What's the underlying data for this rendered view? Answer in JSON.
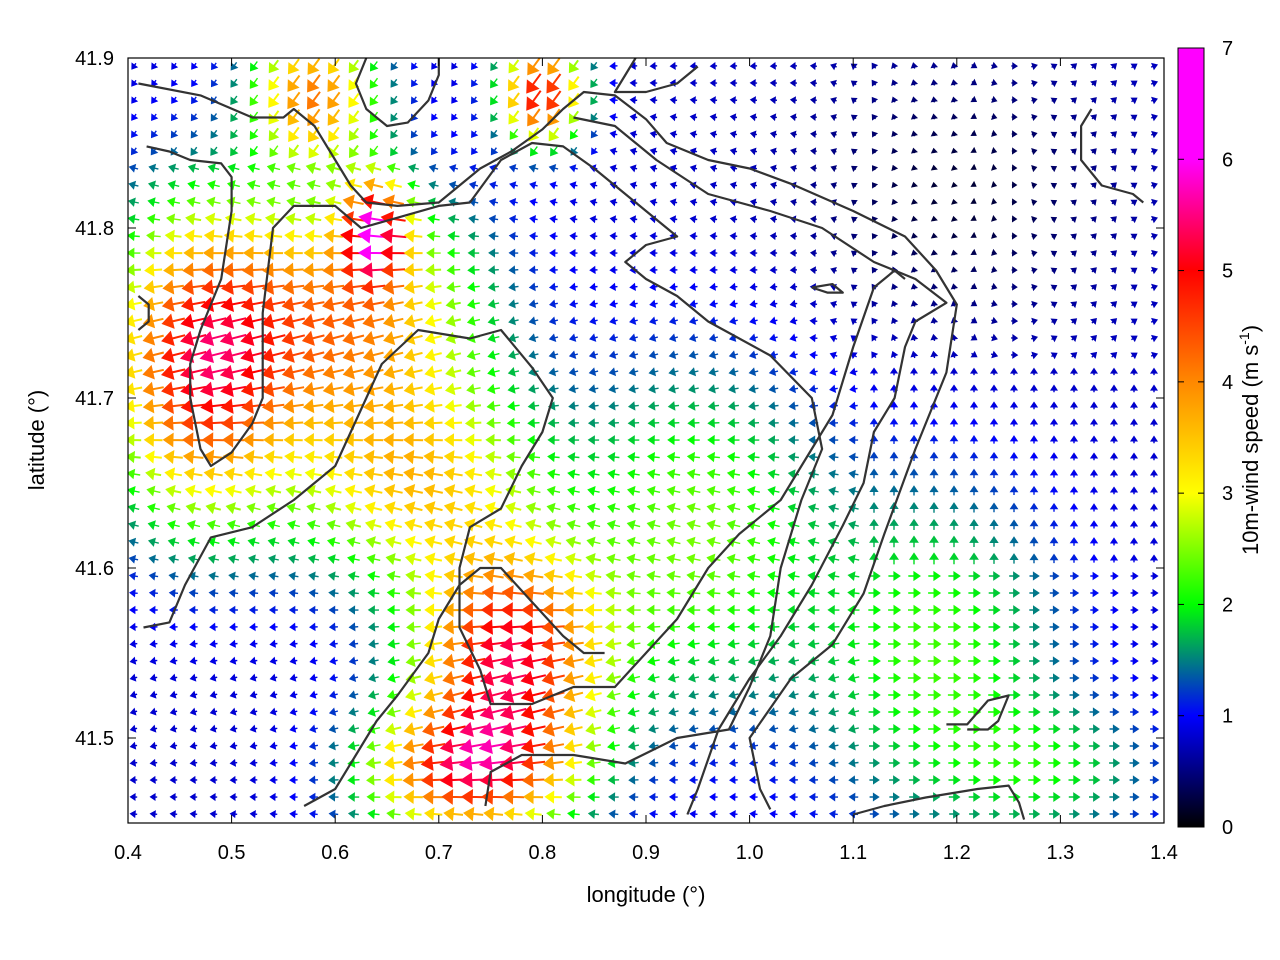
{
  "chart_data": {
    "type": "vector-field",
    "title": "",
    "xlabel": "longitude (°)",
    "ylabel": "latitude (°)",
    "xlim": [
      0.4,
      1.4
    ],
    "ylim": [
      41.45,
      41.9
    ],
    "xticks": [
      "0.4",
      "0.5",
      "0.6",
      "0.7",
      "0.8",
      "0.9",
      "1.0",
      "1.1",
      "1.2",
      "1.3",
      "1.4"
    ],
    "yticks": [
      "41.5",
      "41.6",
      "41.7",
      "41.8",
      "41.9"
    ],
    "colorbar": {
      "label": "10m-wind speed (m s",
      "label_sup": "-1",
      "label_end": ")",
      "range": [
        0,
        7
      ],
      "ticks": [
        "0",
        "1",
        "2",
        "3",
        "4",
        "5",
        "6",
        "7"
      ],
      "palette": [
        "#000000",
        "#0000ff",
        "#00ff00",
        "#ffff00",
        "#ff8800",
        "#ff0000",
        "#ff00ff"
      ]
    },
    "contour_color": "#333333",
    "contours": [
      [
        [
          0.41,
          41.885
        ],
        [
          0.47,
          41.878
        ],
        [
          0.52,
          41.865
        ],
        [
          0.55,
          41.865
        ],
        [
          0.56,
          41.87
        ],
        [
          0.58,
          41.86
        ],
        [
          0.6,
          41.84
        ],
        [
          0.615,
          41.825
        ],
        [
          0.63,
          41.815
        ],
        [
          0.66,
          41.813
        ],
        [
          0.7,
          41.815
        ],
        [
          0.72,
          41.825
        ],
        [
          0.74,
          41.835
        ],
        [
          0.77,
          41.845
        ],
        [
          0.8,
          41.858
        ],
        [
          0.82,
          41.87
        ],
        [
          0.84,
          41.88
        ],
        [
          0.87,
          41.878
        ],
        [
          0.9,
          41.864
        ],
        [
          0.92,
          41.85
        ],
        [
          0.96,
          41.84
        ],
        [
          1.0,
          41.835
        ],
        [
          1.04,
          41.826
        ],
        [
          1.1,
          41.81
        ],
        [
          1.15,
          41.795
        ],
        [
          1.18,
          41.775
        ],
        [
          1.2,
          41.755
        ],
        [
          1.19,
          41.715
        ],
        [
          1.16,
          41.67
        ],
        [
          1.13,
          41.62
        ],
        [
          1.11,
          41.585
        ],
        [
          1.08,
          41.555
        ],
        [
          1.04,
          41.535
        ],
        [
          1.0,
          41.5
        ],
        [
          1.01,
          41.47
        ],
        [
          1.02,
          41.458
        ]
      ],
      [
        [
          0.418,
          41.848
        ],
        [
          0.44,
          41.845
        ],
        [
          0.46,
          41.84
        ],
        [
          0.49,
          41.838
        ],
        [
          0.5,
          41.83
        ],
        [
          0.5,
          41.81
        ],
        [
          0.49,
          41.77
        ],
        [
          0.47,
          41.74
        ],
        [
          0.46,
          41.72
        ],
        [
          0.46,
          41.7
        ],
        [
          0.47,
          41.67
        ],
        [
          0.48,
          41.66
        ],
        [
          0.5,
          41.668
        ],
        [
          0.52,
          41.685
        ],
        [
          0.53,
          41.7
        ],
        [
          0.53,
          41.75
        ],
        [
          0.54,
          41.8
        ],
        [
          0.56,
          41.813
        ],
        [
          0.6,
          41.813
        ],
        [
          0.625,
          41.8
        ],
        [
          0.7,
          41.813
        ],
        [
          0.73,
          41.815
        ],
        [
          0.76,
          41.84
        ],
        [
          0.79,
          41.85
        ],
        [
          0.82,
          41.848
        ],
        [
          0.85,
          41.835
        ],
        [
          0.9,
          41.81
        ],
        [
          0.93,
          41.795
        ],
        [
          0.9,
          41.79
        ],
        [
          0.88,
          41.78
        ],
        [
          0.9,
          41.77
        ],
        [
          0.93,
          41.76
        ],
        [
          0.96,
          41.745
        ],
        [
          1.02,
          41.725
        ],
        [
          1.06,
          41.7
        ],
        [
          1.07,
          41.67
        ],
        [
          1.05,
          41.64
        ],
        [
          1.03,
          41.6
        ],
        [
          1.02,
          41.56
        ],
        [
          1.0,
          41.53
        ],
        [
          0.98,
          41.505
        ],
        [
          0.93,
          41.5
        ],
        [
          0.88,
          41.485
        ],
        [
          0.83,
          41.49
        ],
        [
          0.78,
          41.49
        ],
        [
          0.75,
          41.48
        ],
        [
          0.745,
          41.46
        ]
      ],
      [
        [
          0.415,
          41.565
        ],
        [
          0.44,
          41.568
        ],
        [
          0.455,
          41.59
        ],
        [
          0.48,
          41.618
        ],
        [
          0.52,
          41.624
        ],
        [
          0.56,
          41.64
        ],
        [
          0.6,
          41.66
        ],
        [
          0.63,
          41.7
        ],
        [
          0.645,
          41.72
        ],
        [
          0.68,
          41.74
        ],
        [
          0.73,
          41.735
        ],
        [
          0.76,
          41.74
        ],
        [
          0.79,
          41.718
        ],
        [
          0.81,
          41.7
        ],
        [
          0.8,
          41.68
        ],
        [
          0.78,
          41.66
        ],
        [
          0.76,
          41.635
        ],
        [
          0.73,
          41.624
        ],
        [
          0.72,
          41.6
        ],
        [
          0.72,
          41.565
        ],
        [
          0.74,
          41.54
        ],
        [
          0.75,
          41.52
        ],
        [
          0.79,
          41.52
        ],
        [
          0.83,
          41.53
        ],
        [
          0.87,
          41.53
        ],
        [
          0.9,
          41.55
        ],
        [
          0.93,
          41.57
        ],
        [
          0.96,
          41.6
        ],
        [
          0.99,
          41.62
        ],
        [
          1.03,
          41.64
        ],
        [
          1.05,
          41.66
        ],
        [
          1.08,
          41.69
        ],
        [
          1.1,
          41.73
        ],
        [
          1.12,
          41.765
        ],
        [
          1.14,
          41.775
        ],
        [
          1.15,
          41.77
        ]
      ],
      [
        [
          0.83,
          41.865
        ],
        [
          0.87,
          41.86
        ],
        [
          0.91,
          41.84
        ],
        [
          0.96,
          41.82
        ],
        [
          1.02,
          41.81
        ],
        [
          1.07,
          41.8
        ],
        [
          1.12,
          41.78
        ],
        [
          1.16,
          41.77
        ],
        [
          1.19,
          41.756
        ],
        [
          1.16,
          41.745
        ],
        [
          1.15,
          41.73
        ],
        [
          1.14,
          41.7
        ],
        [
          1.12,
          41.68
        ],
        [
          1.11,
          41.65
        ],
        [
          1.09,
          41.625
        ],
        [
          1.06,
          41.59
        ],
        [
          1.03,
          41.56
        ],
        [
          1.0,
          41.535
        ],
        [
          0.97,
          41.505
        ],
        [
          0.95,
          41.47
        ],
        [
          0.94,
          41.455
        ]
      ],
      [
        [
          0.57,
          41.46
        ],
        [
          0.6,
          41.47
        ],
        [
          0.62,
          41.49
        ],
        [
          0.64,
          41.51
        ],
        [
          0.66,
          41.525
        ],
        [
          0.69,
          41.55
        ],
        [
          0.7,
          41.57
        ],
        [
          0.72,
          41.59
        ],
        [
          0.74,
          41.6
        ],
        [
          0.76,
          41.6
        ],
        [
          0.79,
          41.58
        ],
        [
          0.82,
          41.56
        ],
        [
          0.84,
          41.55
        ],
        [
          0.86,
          41.55
        ]
      ],
      [
        [
          1.33,
          41.87
        ],
        [
          1.32,
          41.86
        ],
        [
          1.32,
          41.84
        ],
        [
          1.34,
          41.825
        ],
        [
          1.37,
          41.82
        ],
        [
          1.38,
          41.815
        ]
      ],
      [
        [
          1.06,
          41.765
        ],
        [
          1.075,
          41.762
        ],
        [
          1.09,
          41.762
        ],
        [
          1.08,
          41.767
        ],
        [
          1.06,
          41.765
        ]
      ],
      [
        [
          1.19,
          41.508
        ],
        [
          1.21,
          41.508
        ],
        [
          1.23,
          41.522
        ],
        [
          1.25,
          41.525
        ],
        [
          1.24,
          41.51
        ],
        [
          1.23,
          41.505
        ],
        [
          1.21,
          41.505
        ]
      ],
      [
        [
          1.1,
          41.455
        ],
        [
          1.13,
          41.46
        ],
        [
          1.17,
          41.465
        ],
        [
          1.22,
          41.47
        ],
        [
          1.25,
          41.472
        ],
        [
          1.26,
          41.462
        ],
        [
          1.265,
          41.452
        ]
      ],
      [
        [
          0.41,
          41.76
        ],
        [
          0.42,
          41.755
        ],
        [
          0.42,
          41.745
        ],
        [
          0.41,
          41.74
        ]
      ],
      [
        [
          0.63,
          41.9
        ],
        [
          0.62,
          41.885
        ],
        [
          0.63,
          41.87
        ],
        [
          0.65,
          41.86
        ],
        [
          0.67,
          41.862
        ],
        [
          0.69,
          41.875
        ],
        [
          0.7,
          41.89
        ],
        [
          0.7,
          41.9
        ]
      ],
      [
        [
          0.89,
          41.9
        ],
        [
          0.88,
          41.89
        ],
        [
          0.87,
          41.88
        ],
        [
          0.9,
          41.88
        ],
        [
          0.93,
          41.885
        ],
        [
          0.95,
          41.895
        ]
      ]
    ]
  }
}
